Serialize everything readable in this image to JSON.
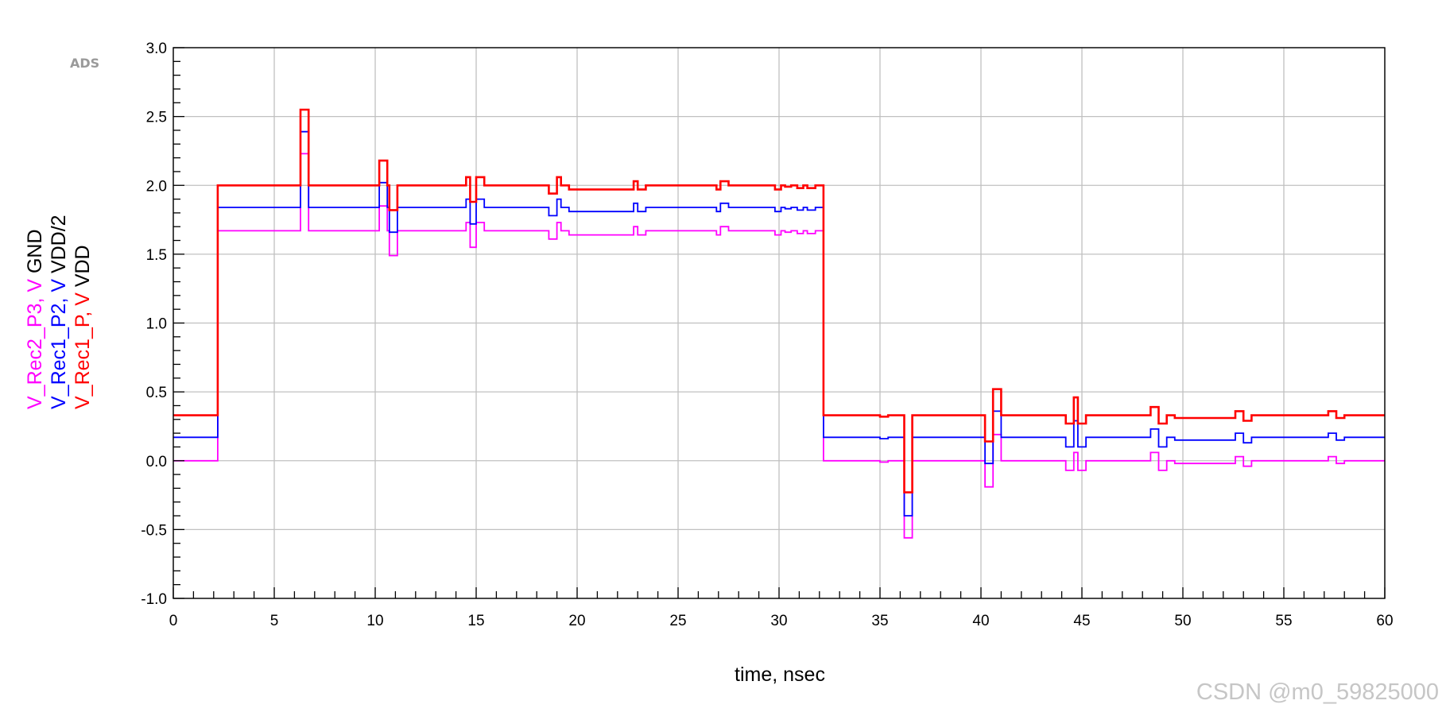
{
  "brand": "ADS",
  "watermark": "CSDN @m0_59825000",
  "chart_data": {
    "type": "line",
    "title": "",
    "xlabel": "time, nsec",
    "ylabel_lines": [
      {
        "parts": [
          {
            "text": "V_Rec2_P3, V",
            "color": "#ff00ff"
          },
          {
            "text": " GND",
            "color": "#000000"
          }
        ]
      },
      {
        "parts": [
          {
            "text": "V_Rec1_P2, V",
            "color": "#0000ff"
          },
          {
            "text": " VDD/2",
            "color": "#000000"
          }
        ]
      },
      {
        "parts": [
          {
            "text": "V_Rec1_P, V",
            "color": "#ff0000"
          },
          {
            "text": " VDD",
            "color": "#000000"
          }
        ]
      }
    ],
    "xlim": [
      0,
      60
    ],
    "ylim": [
      -1.0,
      3.0
    ],
    "xticks": [
      "0",
      "5",
      "10",
      "15",
      "20",
      "25",
      "30",
      "35",
      "40",
      "45",
      "50",
      "55",
      "60"
    ],
    "yticks": [
      "-1.0",
      "-0.5",
      "0.0",
      "0.5",
      "1.0",
      "1.5",
      "2.0",
      "2.5",
      "3.0"
    ],
    "grid": true,
    "series": [
      {
        "name": "V_Rec2_P3",
        "color": "#ff00ff",
        "step": true,
        "x": [
          0,
          2.2,
          6.3,
          6.7,
          10.2,
          10.6,
          10.7,
          11.1,
          14.5,
          14.7,
          15.0,
          15.4,
          18.6,
          19.0,
          19.2,
          19.6,
          22.8,
          23.0,
          23.4,
          26.9,
          27.1,
          27.5,
          29.8,
          30.1,
          30.3,
          30.6,
          30.9,
          31.2,
          31.4,
          31.8,
          32.2,
          35.0,
          35.4,
          36.2,
          36.6,
          40.2,
          40.6,
          41.0,
          44.2,
          44.6,
          44.8,
          45.2,
          48.4,
          48.8,
          49.2,
          49.6,
          52.6,
          53.0,
          53.4,
          57.2,
          57.6,
          58.0,
          60
        ],
        "y": [
          0.0,
          1.67,
          2.23,
          1.67,
          1.85,
          1.67,
          1.49,
          1.67,
          1.73,
          1.55,
          1.73,
          1.67,
          1.61,
          1.73,
          1.67,
          1.64,
          1.7,
          1.64,
          1.67,
          1.64,
          1.7,
          1.67,
          1.64,
          1.67,
          1.66,
          1.67,
          1.65,
          1.67,
          1.65,
          1.67,
          0.0,
          -0.01,
          0.0,
          -0.56,
          0.0,
          -0.19,
          0.19,
          0.0,
          -0.07,
          0.06,
          -0.07,
          0.0,
          0.06,
          -0.07,
          0.0,
          -0.02,
          0.03,
          -0.04,
          0.0,
          0.03,
          -0.02,
          0.0,
          0.0
        ]
      },
      {
        "name": "V_Rec1_P2",
        "color": "#0000ff",
        "step": true,
        "x": [
          0,
          2.2,
          6.3,
          6.7,
          10.2,
          10.6,
          10.7,
          11.1,
          14.5,
          14.7,
          15.0,
          15.4,
          18.6,
          19.0,
          19.2,
          19.6,
          22.8,
          23.0,
          23.4,
          26.9,
          27.1,
          27.5,
          29.8,
          30.1,
          30.3,
          30.6,
          30.9,
          31.2,
          31.4,
          31.8,
          32.2,
          35.0,
          35.4,
          36.2,
          36.6,
          40.2,
          40.6,
          41.0,
          44.2,
          44.6,
          44.8,
          45.2,
          48.4,
          48.8,
          49.2,
          49.6,
          52.6,
          53.0,
          53.4,
          57.2,
          57.6,
          58.0,
          60
        ],
        "y": [
          0.17,
          1.84,
          2.39,
          1.84,
          2.02,
          1.84,
          1.66,
          1.84,
          1.9,
          1.72,
          1.9,
          1.84,
          1.78,
          1.9,
          1.84,
          1.81,
          1.87,
          1.81,
          1.84,
          1.81,
          1.87,
          1.84,
          1.81,
          1.84,
          1.83,
          1.84,
          1.82,
          1.84,
          1.82,
          1.84,
          0.17,
          0.16,
          0.17,
          -0.4,
          0.17,
          -0.02,
          0.36,
          0.17,
          0.1,
          0.29,
          0.1,
          0.17,
          0.23,
          0.1,
          0.17,
          0.15,
          0.2,
          0.13,
          0.17,
          0.2,
          0.15,
          0.17,
          0.17
        ]
      },
      {
        "name": "V_Rec1_P",
        "color": "#ff0000",
        "step": true,
        "x": [
          0,
          2.2,
          6.3,
          6.7,
          10.2,
          10.6,
          10.7,
          11.1,
          14.5,
          14.7,
          15.0,
          15.4,
          18.6,
          19.0,
          19.2,
          19.6,
          22.8,
          23.0,
          23.4,
          26.9,
          27.1,
          27.5,
          29.8,
          30.1,
          30.3,
          30.6,
          30.9,
          31.2,
          31.4,
          31.8,
          32.2,
          35.0,
          35.4,
          36.2,
          36.6,
          40.2,
          40.6,
          41.0,
          44.2,
          44.6,
          44.8,
          45.2,
          48.4,
          48.8,
          49.2,
          49.6,
          52.6,
          53.0,
          53.4,
          57.2,
          57.6,
          58.0,
          60
        ],
        "y": [
          0.33,
          2.0,
          2.55,
          2.0,
          2.18,
          2.0,
          1.82,
          2.0,
          2.06,
          1.88,
          2.06,
          2.0,
          1.94,
          2.06,
          2.0,
          1.97,
          2.03,
          1.97,
          2.0,
          1.97,
          2.03,
          2.0,
          1.97,
          2.0,
          1.99,
          2.0,
          1.98,
          2.0,
          1.98,
          2.0,
          0.33,
          0.32,
          0.33,
          -0.23,
          0.33,
          0.14,
          0.52,
          0.33,
          0.27,
          0.46,
          0.27,
          0.33,
          0.39,
          0.27,
          0.33,
          0.31,
          0.36,
          0.29,
          0.33,
          0.36,
          0.31,
          0.33,
          0.33
        ]
      }
    ]
  }
}
